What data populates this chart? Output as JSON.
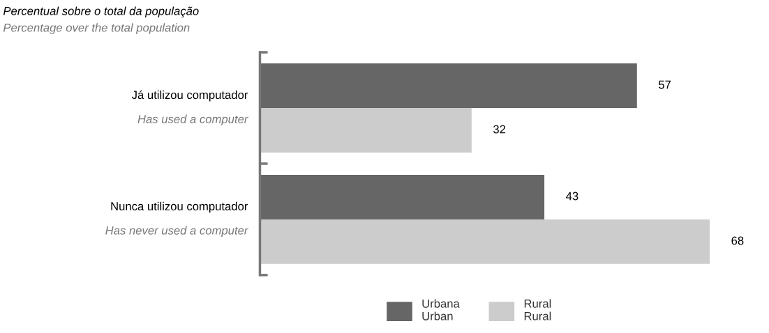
{
  "chart_data": {
    "type": "bar",
    "orientation": "horizontal",
    "title": "Percentual sobre o total da população",
    "subtitle": "Percentage over the total population",
    "categories": [
      "Já utilizou computador\nHas used a computer",
      "Nunca utilizou computador\nHas never used a computer"
    ],
    "series": [
      {
        "name": "Urbana\nUrban",
        "color": "#666666",
        "values": [
          57,
          43
        ]
      },
      {
        "name": "Rural\nRural",
        "color": "#cccccc",
        "values": [
          32,
          68
        ]
      }
    ],
    "data_labels": true,
    "legend": "bottom",
    "grid": false
  }
}
